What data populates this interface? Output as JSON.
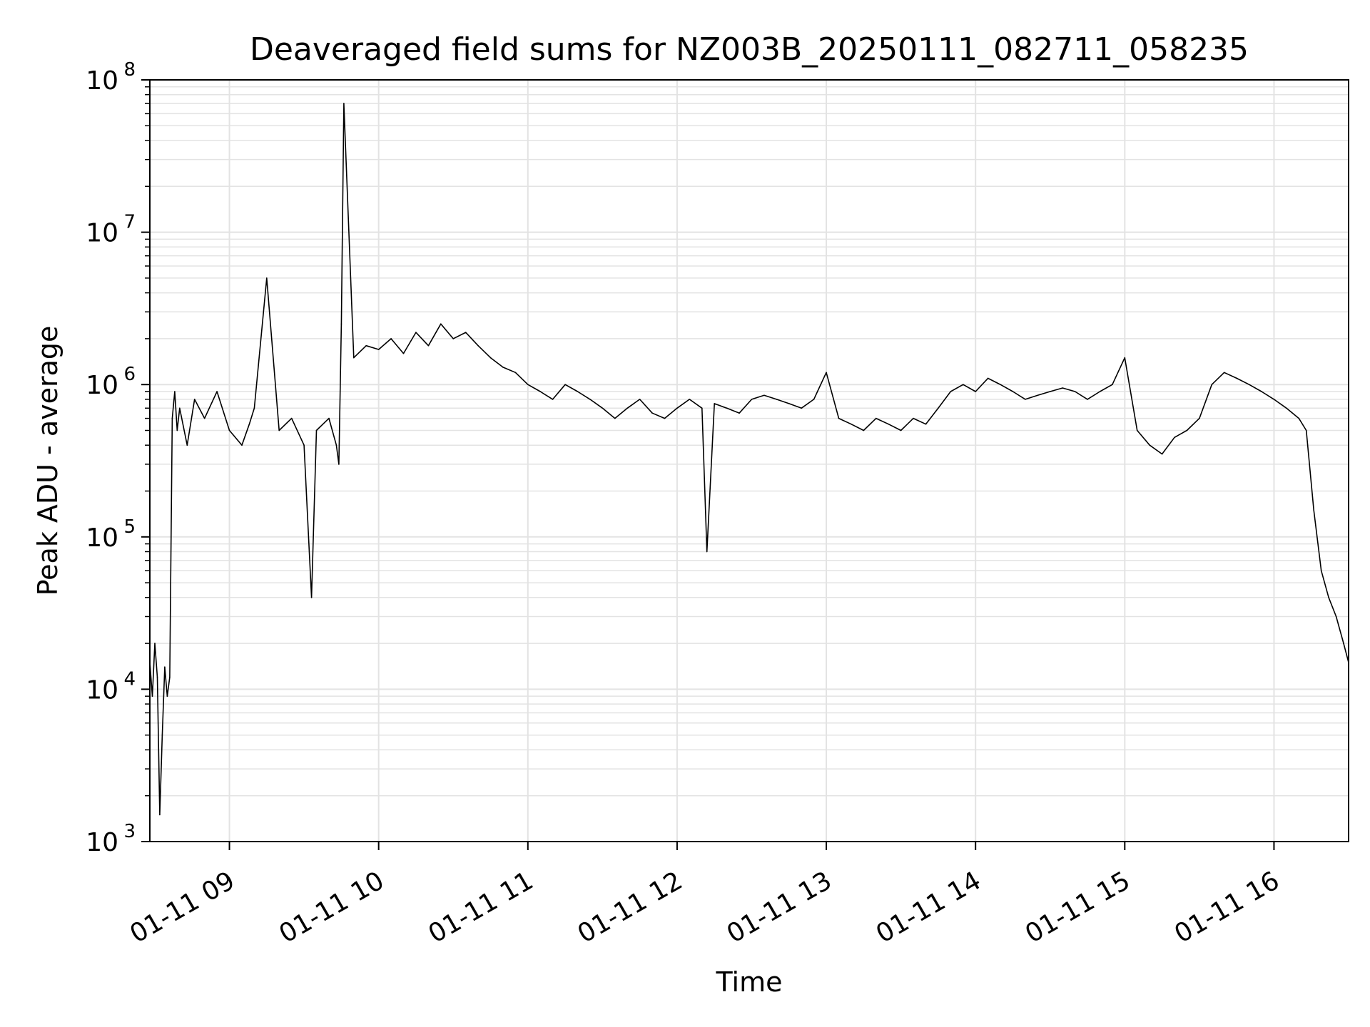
{
  "chart_data": {
    "type": "line",
    "title": "Deaveraged field sums for NZ003B_20250111_082711_058235",
    "xlabel": "Time",
    "ylabel": "Peak ADU - average",
    "y_scale": "log",
    "ylim": [
      1000,
      100000000
    ],
    "xlim": [
      "2025-01-11 08:28",
      "2025-01-11 16:30"
    ],
    "x_ticks": [
      "01-11 09",
      "01-11 10",
      "01-11 11",
      "01-11 12",
      "01-11 13",
      "01-11 14",
      "01-11 15",
      "01-11 16"
    ],
    "y_ticks": [
      {
        "base": "10",
        "exp": "3"
      },
      {
        "base": "10",
        "exp": "4"
      },
      {
        "base": "10",
        "exp": "5"
      },
      {
        "base": "10",
        "exp": "6"
      },
      {
        "base": "10",
        "exp": "7"
      },
      {
        "base": "10",
        "exp": "8"
      }
    ],
    "grid": true,
    "line_color": "#000000",
    "series": [
      {
        "x": [
          "2025-01-11 08:28",
          "2025-01-11 08:29",
          "2025-01-11 08:30",
          "2025-01-11 08:31",
          "2025-01-11 08:32",
          "2025-01-11 08:33",
          "2025-01-11 08:34",
          "2025-01-11 08:35",
          "2025-01-11 08:36",
          "2025-01-11 08:37",
          "2025-01-11 08:38",
          "2025-01-11 08:39",
          "2025-01-11 08:40",
          "2025-01-11 08:43",
          "2025-01-11 08:46",
          "2025-01-11 08:50",
          "2025-01-11 08:55",
          "2025-01-11 09:00",
          "2025-01-11 09:05",
          "2025-01-11 09:08",
          "2025-01-11 09:10",
          "2025-01-11 09:15",
          "2025-01-11 09:20",
          "2025-01-11 09:25",
          "2025-01-11 09:30",
          "2025-01-11 09:33",
          "2025-01-11 09:35",
          "2025-01-11 09:40",
          "2025-01-11 09:43",
          "2025-01-11 09:44",
          "2025-01-11 09:45",
          "2025-01-11 09:46",
          "2025-01-11 09:50",
          "2025-01-11 09:55",
          "2025-01-11 10:00",
          "2025-01-11 10:05",
          "2025-01-11 10:10",
          "2025-01-11 10:15",
          "2025-01-11 10:20",
          "2025-01-11 10:25",
          "2025-01-11 10:30",
          "2025-01-11 10:35",
          "2025-01-11 10:40",
          "2025-01-11 10:45",
          "2025-01-11 10:50",
          "2025-01-11 10:55",
          "2025-01-11 11:00",
          "2025-01-11 11:05",
          "2025-01-11 11:10",
          "2025-01-11 11:15",
          "2025-01-11 11:20",
          "2025-01-11 11:25",
          "2025-01-11 11:30",
          "2025-01-11 11:35",
          "2025-01-11 11:40",
          "2025-01-11 11:45",
          "2025-01-11 11:50",
          "2025-01-11 11:55",
          "2025-01-11 12:00",
          "2025-01-11 12:05",
          "2025-01-11 12:10",
          "2025-01-11 12:12",
          "2025-01-11 12:15",
          "2025-01-11 12:20",
          "2025-01-11 12:25",
          "2025-01-11 12:30",
          "2025-01-11 12:35",
          "2025-01-11 12:40",
          "2025-01-11 12:45",
          "2025-01-11 12:50",
          "2025-01-11 12:55",
          "2025-01-11 13:00",
          "2025-01-11 13:05",
          "2025-01-11 13:10",
          "2025-01-11 13:15",
          "2025-01-11 13:20",
          "2025-01-11 13:25",
          "2025-01-11 13:30",
          "2025-01-11 13:35",
          "2025-01-11 13:40",
          "2025-01-11 13:45",
          "2025-01-11 13:50",
          "2025-01-11 13:55",
          "2025-01-11 14:00",
          "2025-01-11 14:05",
          "2025-01-11 14:10",
          "2025-01-11 14:15",
          "2025-01-11 14:20",
          "2025-01-11 14:25",
          "2025-01-11 14:30",
          "2025-01-11 14:35",
          "2025-01-11 14:40",
          "2025-01-11 14:45",
          "2025-01-11 14:50",
          "2025-01-11 14:55",
          "2025-01-11 15:00",
          "2025-01-11 15:05",
          "2025-01-11 15:10",
          "2025-01-11 15:15",
          "2025-01-11 15:20",
          "2025-01-11 15:25",
          "2025-01-11 15:30",
          "2025-01-11 15:35",
          "2025-01-11 15:40",
          "2025-01-11 15:45",
          "2025-01-11 15:50",
          "2025-01-11 15:55",
          "2025-01-11 16:00",
          "2025-01-11 16:05",
          "2025-01-11 16:10",
          "2025-01-11 16:13",
          "2025-01-11 16:16",
          "2025-01-11 16:19",
          "2025-01-11 16:22",
          "2025-01-11 16:25",
          "2025-01-11 16:28",
          "2025-01-11 16:30"
        ],
        "y": [
          15000,
          9000,
          20000,
          12000,
          1500,
          5000,
          14000,
          9000,
          12000,
          600000,
          900000,
          500000,
          700000,
          400000,
          800000,
          600000,
          900000,
          500000,
          400000,
          550000,
          700000,
          5000000,
          500000,
          600000,
          400000,
          40000,
          500000,
          600000,
          400000,
          300000,
          2500000,
          70000000,
          1500000,
          1800000,
          1700000,
          2000000,
          1600000,
          2200000,
          1800000,
          2500000,
          2000000,
          2200000,
          1800000,
          1500000,
          1300000,
          1200000,
          1000000,
          900000,
          800000,
          1000000,
          900000,
          800000,
          700000,
          600000,
          700000,
          800000,
          650000,
          600000,
          700000,
          800000,
          700000,
          80000,
          750000,
          700000,
          650000,
          800000,
          850000,
          800000,
          750000,
          700000,
          800000,
          1200000,
          600000,
          550000,
          500000,
          600000,
          550000,
          500000,
          600000,
          550000,
          700000,
          900000,
          1000000,
          900000,
          1100000,
          1000000,
          900000,
          800000,
          850000,
          900000,
          950000,
          900000,
          800000,
          900000,
          1000000,
          1500000,
          500000,
          400000,
          350000,
          450000,
          500000,
          600000,
          1000000,
          1200000,
          1100000,
          1000000,
          900000,
          800000,
          700000,
          600000,
          500000,
          150000,
          60000,
          40000,
          30000,
          20000,
          15000
        ]
      }
    ]
  }
}
